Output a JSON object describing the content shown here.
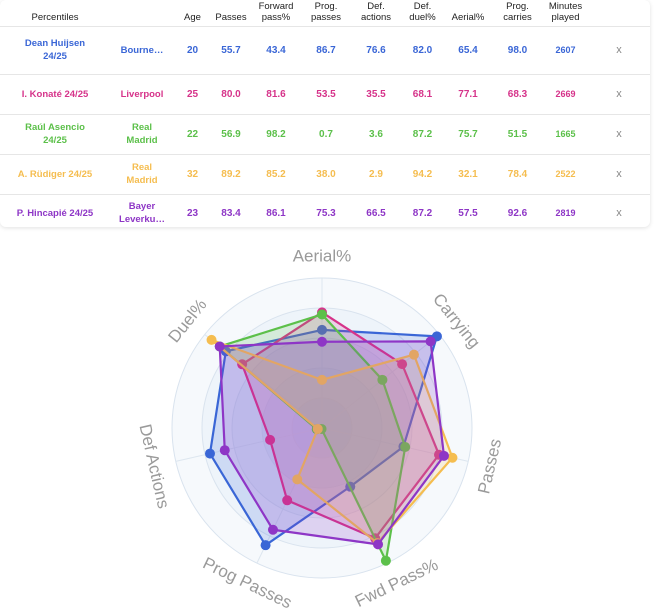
{
  "table": {
    "headers": [
      "Percentiles",
      "",
      "Age",
      "Passes",
      "Forward\npass%",
      "Prog.\npasses",
      "Def.\nactions",
      "Def.\nduel%",
      "Aerial%",
      "Prog.\ncarries",
      "Minutes\nplayed",
      ""
    ],
    "remove_label": "x",
    "rows": [
      {
        "player": "Dean Huijsen\n24/25",
        "team": "Bourne…",
        "age": "20",
        "passes": "55.7",
        "fwd_pass": "43.4",
        "prog_passes": "86.7",
        "def_actions": "76.6",
        "def_duel": "82.0",
        "aerial": "65.4",
        "prog_carries": "98.0",
        "minutes": "2607",
        "color": "#3a66d6"
      },
      {
        "player": "I. Konaté 24/25",
        "team": "Liverpool",
        "age": "25",
        "passes": "80.0",
        "fwd_pass": "81.6",
        "prog_passes": "53.5",
        "def_actions": "35.5",
        "def_duel": "68.1",
        "aerial": "77.1",
        "prog_carries": "68.3",
        "minutes": "2669",
        "color": "#d6338a"
      },
      {
        "player": "Raúl Asencio\n24/25",
        "team": "Real\nMadrid",
        "age": "22",
        "passes": "56.9",
        "fwd_pass": "98.2",
        "prog_passes": "0.7",
        "def_actions": "3.6",
        "def_duel": "87.2",
        "aerial": "75.7",
        "prog_carries": "51.5",
        "minutes": "1665",
        "color": "#5cc04a"
      },
      {
        "player": "A. Rüdiger 24/25",
        "team": "Real\nMadrid",
        "age": "32",
        "passes": "89.2",
        "fwd_pass": "85.2",
        "prog_passes": "38.0",
        "def_actions": "2.9",
        "def_duel": "94.2",
        "aerial": "32.1",
        "prog_carries": "78.4",
        "minutes": "2522",
        "color": "#f5bd4f"
      },
      {
        "player": "P. Hincapié 24/25",
        "team": "Bayer\nLeverku…",
        "age": "23",
        "passes": "83.4",
        "fwd_pass": "86.1",
        "prog_passes": "75.3",
        "def_actions": "66.5",
        "def_duel": "87.2",
        "aerial": "57.5",
        "prog_carries": "92.6",
        "minutes": "2819",
        "color": "#8e36c6"
      }
    ]
  },
  "chart_data": {
    "type": "radar",
    "axes": [
      "Aerial%",
      "Carrying",
      "Passes",
      "Fwd Pass%",
      "Prog Passes",
      "Def Actions",
      "Duel%"
    ],
    "range": [
      0,
      100
    ],
    "series": [
      {
        "name": "Dean Huijsen 24/25",
        "values": [
          65.4,
          98.0,
          55.7,
          43.4,
          86.7,
          76.6,
          82.0
        ],
        "color": "#3a66d6"
      },
      {
        "name": "I. Konaté 24/25",
        "values": [
          77.1,
          68.3,
          80.0,
          81.6,
          53.5,
          35.5,
          68.1
        ],
        "color": "#d6338a"
      },
      {
        "name": "Raúl Asencio 24/25",
        "values": [
          75.7,
          51.5,
          56.9,
          98.2,
          0.7,
          3.6,
          87.2
        ],
        "color": "#5cc04a"
      },
      {
        "name": "A. Rüdiger 24/25",
        "values": [
          32.1,
          78.4,
          89.2,
          85.2,
          38.0,
          2.9,
          94.2
        ],
        "color": "#f5bd4f"
      },
      {
        "name": "P. Hincapié 24/25",
        "values": [
          57.5,
          92.6,
          83.4,
          86.1,
          75.3,
          66.5,
          87.2
        ],
        "color": "#8e36c6"
      }
    ]
  }
}
